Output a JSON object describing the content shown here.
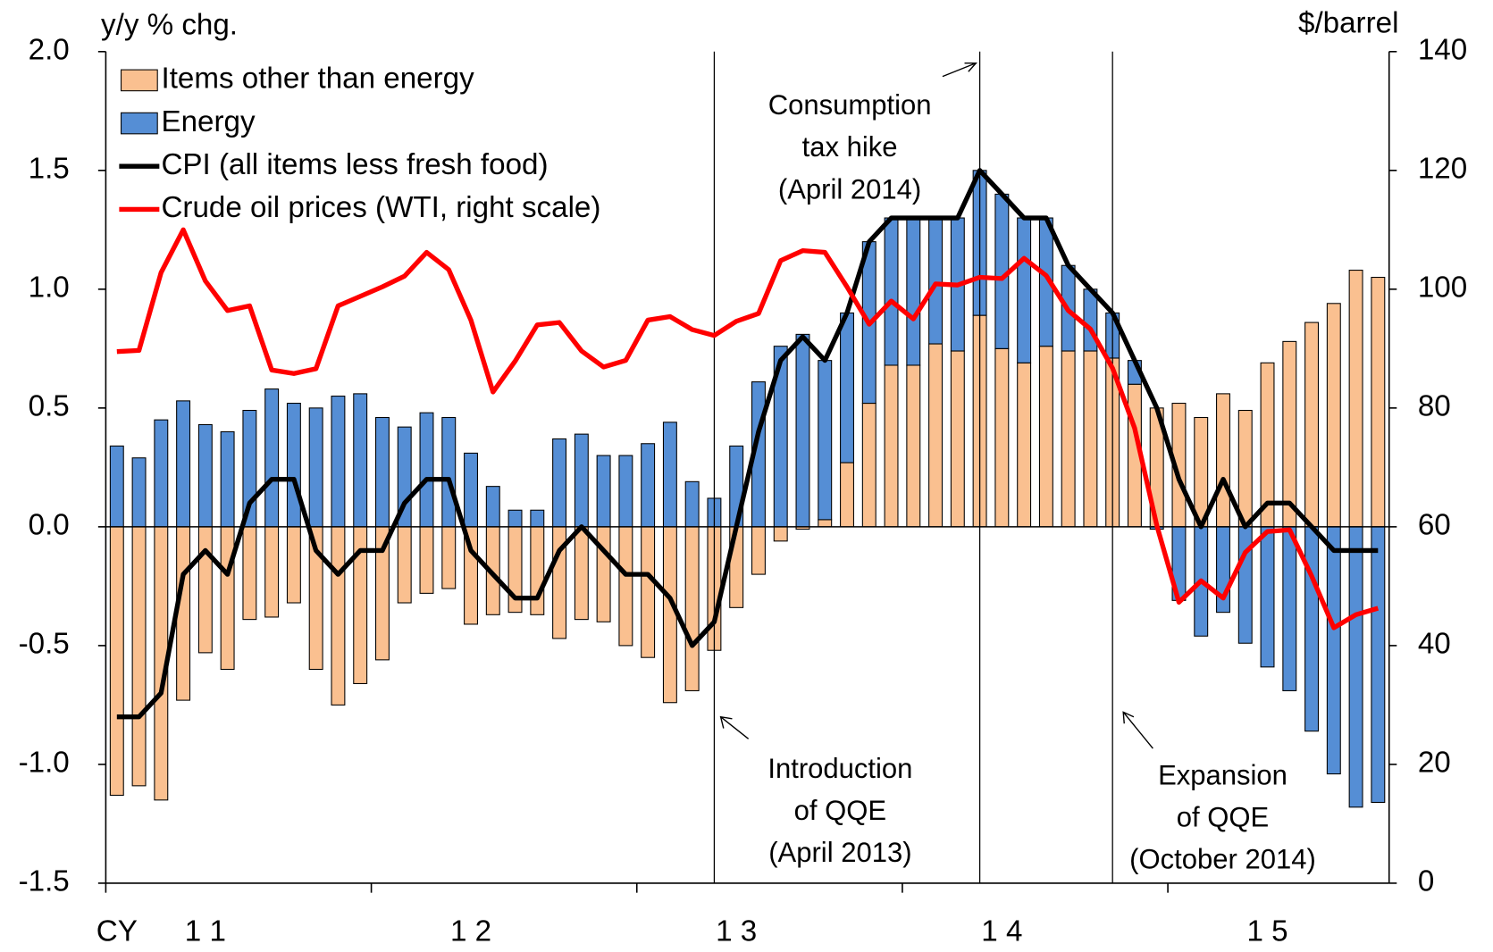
{
  "chart_data": {
    "type": "bar",
    "stacked": true,
    "y_label": "y/y % chg.",
    "y2_label": "$/barrel",
    "categories": [
      "CY",
      null,
      null,
      null,
      "1 1",
      null,
      null,
      null,
      null,
      null,
      null,
      null,
      null,
      null,
      null,
      null,
      "1 2",
      null,
      null,
      null,
      null,
      null,
      null,
      null,
      null,
      null,
      null,
      null,
      "1 3",
      null,
      null,
      null,
      null,
      null,
      null,
      null,
      null,
      null,
      null,
      null,
      "1 4",
      null,
      null,
      null,
      null,
      null,
      null,
      null,
      null,
      null,
      null,
      null,
      "1 5",
      null,
      null,
      null,
      null,
      null
    ],
    "ylim": [
      -1.5,
      2
    ],
    "yticks": [
      {
        "value": -1.5,
        "label": "-1.5"
      },
      {
        "value": -1,
        "label": "-1.0"
      },
      {
        "value": -0.5,
        "label": "-0.5"
      },
      {
        "value": 0,
        "label": "0.0"
      },
      {
        "value": 0.5,
        "label": "0.5"
      },
      {
        "value": 1,
        "label": "1.0"
      },
      {
        "value": 1.5,
        "label": "1.5"
      },
      {
        "value": 2,
        "label": "2.0"
      }
    ],
    "y2lim": [
      0,
      140
    ],
    "y2ticks": [
      0,
      20,
      40,
      60,
      80,
      100,
      120,
      140
    ],
    "legend": "top-left",
    "series": [
      {
        "name": "Items other than energy",
        "type": "bar",
        "color": "#fac090",
        "values": [
          -1.13,
          -1.09,
          -1.15,
          -0.73,
          -0.53,
          -0.6,
          -0.39,
          -0.38,
          -0.32,
          -0.6,
          -0.75,
          -0.66,
          -0.56,
          -0.32,
          -0.28,
          -0.26,
          -0.41,
          -0.37,
          -0.36,
          -0.37,
          -0.47,
          -0.39,
          -0.4,
          -0.5,
          -0.55,
          -0.74,
          -0.69,
          -0.52,
          -0.34,
          -0.2,
          -0.06,
          -0.01,
          0.03,
          0.27,
          0.52,
          0.68,
          0.68,
          0.77,
          0.74,
          0.89,
          0.75,
          0.69,
          0.76,
          0.74,
          0.74,
          0.71,
          0.6,
          0.5,
          0.52,
          0.46,
          0.56,
          0.49,
          0.69,
          0.78,
          0.86,
          0.94,
          1.08,
          1.05
        ]
      },
      {
        "name": "Energy",
        "type": "bar",
        "color": "#558ed5",
        "values": [
          0.34,
          0.29,
          0.45,
          0.53,
          0.43,
          0.4,
          0.49,
          0.58,
          0.52,
          0.5,
          0.55,
          0.56,
          0.46,
          0.42,
          0.48,
          0.46,
          0.31,
          0.17,
          0.07,
          0.07,
          0.37,
          0.39,
          0.3,
          0.3,
          0.35,
          0.44,
          0.19,
          0.12,
          0.34,
          0.61,
          0.76,
          0.81,
          0.67,
          0.63,
          0.68,
          0.62,
          0.62,
          0.53,
          0.56,
          0.61,
          0.65,
          0.61,
          0.54,
          0.36,
          0.26,
          0.19,
          0.1,
          -0.01,
          -0.31,
          -0.46,
          -0.36,
          -0.49,
          -0.59,
          -0.69,
          -0.86,
          -1.04,
          -1.18,
          -1.16
        ]
      },
      {
        "name": "CPI (all items less fresh food)",
        "type": "line",
        "color": "#000000",
        "values": [
          -0.8,
          -0.8,
          -0.7,
          -0.2,
          -0.1,
          -0.2,
          0.1,
          0.2,
          0.2,
          -0.1,
          -0.2,
          -0.1,
          -0.1,
          0.1,
          0.2,
          0.2,
          -0.1,
          -0.2,
          -0.3,
          -0.3,
          -0.1,
          0,
          -0.1,
          -0.2,
          -0.2,
          -0.3,
          -0.5,
          -0.4,
          0,
          0.4,
          0.7,
          0.8,
          0.7,
          0.9,
          1.2,
          1.3,
          1.3,
          1.3,
          1.3,
          1.5,
          1.4,
          1.3,
          1.3,
          1.1,
          1,
          0.9,
          0.7,
          0.5,
          0.2,
          0,
          0.2,
          0,
          0.1,
          0.1,
          0,
          -0.1,
          -0.1,
          -0.1
        ]
      },
      {
        "name": "Crude oil prices (WTI, right scale)",
        "type": "line",
        "axis": "y2",
        "color": "#ff0000",
        "values": [
          89.5,
          89.7,
          102.8,
          110,
          101.4,
          96.4,
          97.2,
          86.4,
          85.8,
          86.6,
          97.2,
          98.8,
          100.4,
          102.2,
          106.2,
          103.3,
          94.8,
          82.7,
          87.9,
          94,
          94.4,
          89.6,
          86.9,
          88,
          94.8,
          95.4,
          93.2,
          92.2,
          94.6,
          95.9,
          104.8,
          106.5,
          106.2,
          100.4,
          94.1,
          98,
          95,
          100.9,
          100.7,
          102,
          101.8,
          105.2,
          102.3,
          96.4,
          93.3,
          86.7,
          76.6,
          60.2,
          47.3,
          50.9,
          48,
          55.7,
          59.2,
          59.5,
          51.7,
          43,
          45.2,
          46.3
        ]
      }
    ],
    "annotations": [
      {
        "lines": [
          "Consumption",
          "tax  hike",
          "(April 2014)"
        ]
      },
      {
        "lines": [
          "Introduction",
          "of QQE",
          "(April 2013)"
        ]
      },
      {
        "lines": [
          "Expansion",
          "of QQE",
          "(October 2014)"
        ]
      }
    ]
  }
}
